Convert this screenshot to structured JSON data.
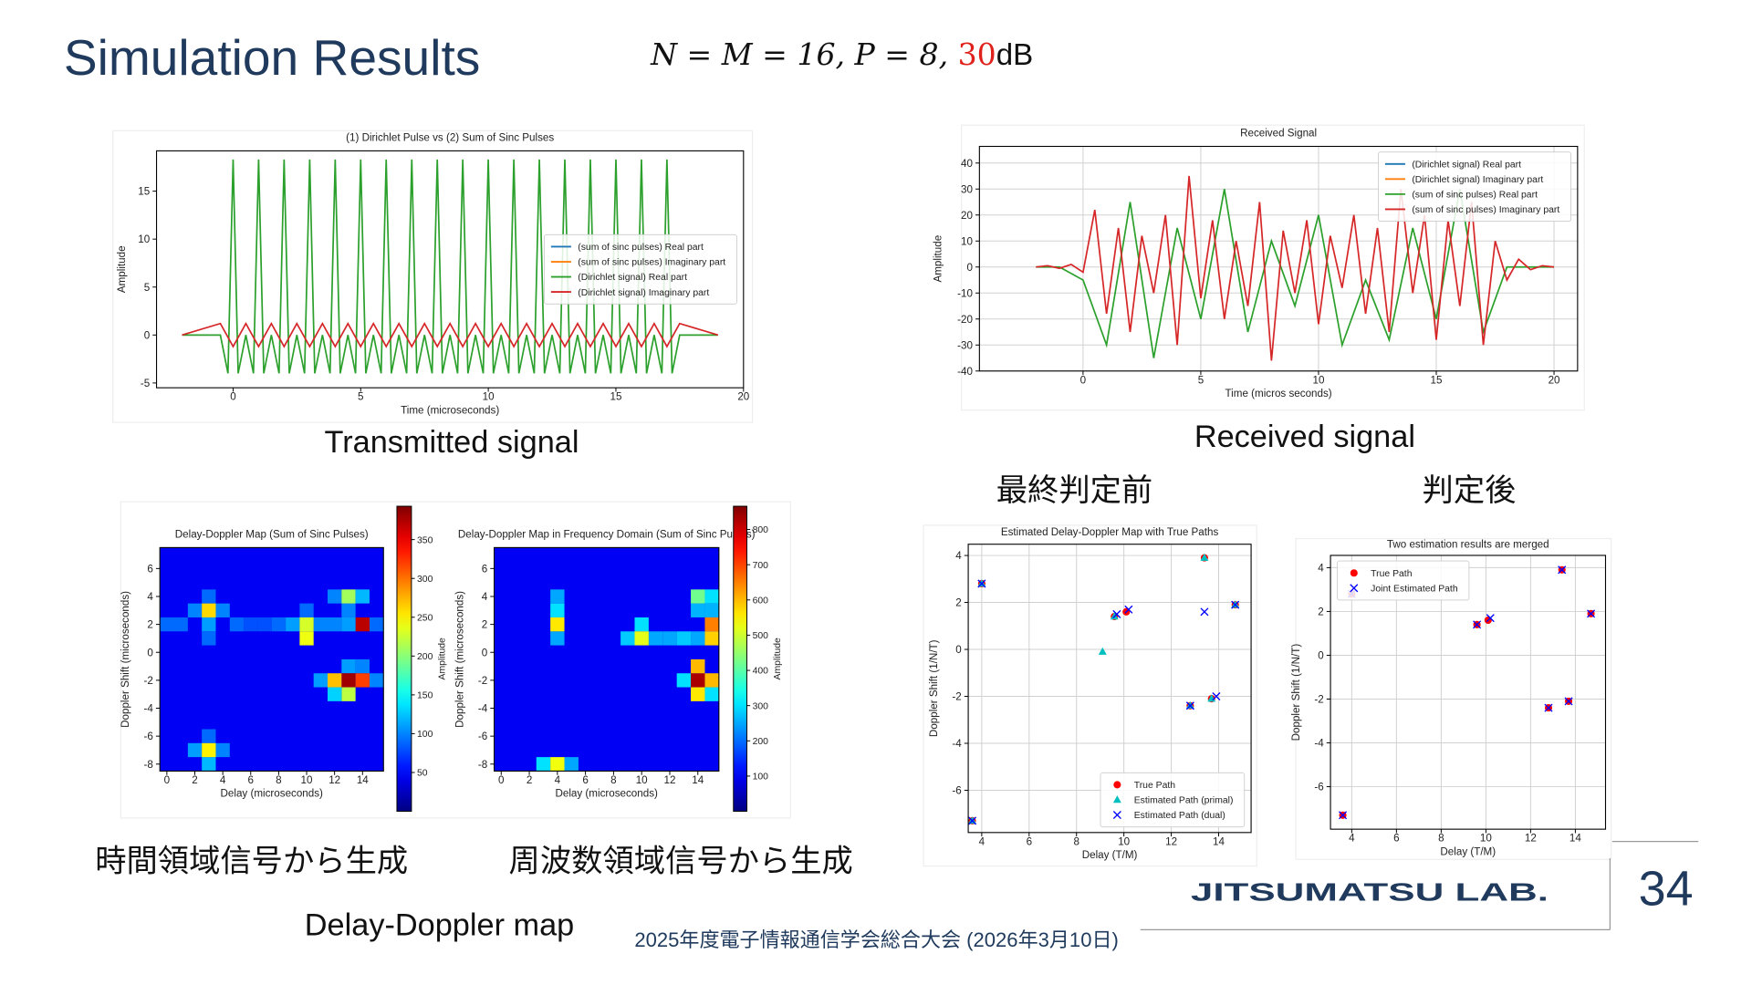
{
  "title": "Simulation Results",
  "formula": {
    "expression": "N = M = 16, P = 8, ",
    "snr": "30",
    "unit": "dB"
  },
  "captions": {
    "transmitted": "Transmitted signal",
    "received": "Received signal",
    "before": "最終判定前",
    "after": "判定後",
    "time_domain": "時間領域信号から生成",
    "freq_domain": "周波数領域信号から生成",
    "dd_map": "Delay-Doppler map"
  },
  "footer": "2025年度電子情報通信学会総合大会 (2026年3月10日)",
  "lab": "JITSUMATSU LAB.",
  "page_number": "34",
  "chart_data": [
    {
      "type": "line",
      "title": "(1) Dirichlet Pulse vs (2) Sum of Sinc Pulses",
      "xlabel": "Time (microseconds)",
      "ylabel": "Amplitude",
      "xlim": [
        -3,
        20
      ],
      "ylim": [
        -5.5,
        19.2
      ],
      "xticks": [
        0,
        5,
        10,
        15,
        20
      ],
      "yticks": [
        -5,
        0,
        5,
        10,
        15
      ],
      "grid": false,
      "legend": "center right",
      "series": [
        {
          "name": "(sum of sinc pulses) Real part",
          "color": "#1f77b4"
        },
        {
          "name": "(sum of sinc pulses) Imaginary part",
          "color": "#ff7f0e"
        },
        {
          "name": "(Dirichlet signal) Real part",
          "color": "#2ca02c",
          "x": [
            -2,
            -0.5,
            -0.2,
            0,
            0.2,
            0.5,
            0.8,
            1,
            1.2,
            1.5,
            1.8,
            2,
            2.2,
            2.5,
            2.8,
            3,
            3.2,
            3.5,
            3.8,
            4,
            4.2,
            4.5,
            4.8,
            5,
            5.2,
            5.5,
            5.8,
            6,
            6.2,
            6.5,
            6.8,
            7,
            7.2,
            7.5,
            7.8,
            8,
            8.2,
            8.5,
            8.8,
            9,
            9.2,
            9.5,
            9.8,
            10,
            10.2,
            10.5,
            10.8,
            11,
            11.2,
            11.5,
            11.8,
            12,
            12.2,
            12.5,
            12.8,
            13,
            13.2,
            13.5,
            13.8,
            14,
            14.2,
            14.5,
            14.8,
            15,
            15.2,
            15.5,
            15.8,
            16,
            16.2,
            16.5,
            16.8,
            17,
            17.2,
            17.5,
            19
          ],
          "values": [
            0,
            0,
            -4,
            18.3,
            -4,
            0,
            -4,
            18.3,
            -4,
            0,
            -4,
            18.3,
            -4,
            0,
            -4,
            18.3,
            -4,
            0,
            -4,
            18.3,
            -4,
            0,
            -4,
            18.3,
            -4,
            0,
            -4,
            18.3,
            -4,
            0,
            -4,
            18.3,
            -4,
            0,
            -4,
            18.3,
            -4,
            0,
            -4,
            18.3,
            -4,
            0,
            -4,
            18.3,
            -4,
            0,
            -4,
            18.3,
            -4,
            0,
            -4,
            18.3,
            -4,
            0,
            -4,
            18.3,
            -4,
            0,
            -4,
            18.3,
            -4,
            0,
            -4,
            18.3,
            -4,
            0,
            -4,
            18.3,
            -4,
            0,
            -4,
            18.3,
            -4,
            0,
            0
          ]
        },
        {
          "name": "(Dirichlet signal) Imaginary part",
          "color": "#d62728",
          "x": [
            -2,
            -0.5,
            0,
            0.5,
            1,
            1.5,
            2,
            2.5,
            3,
            3.5,
            4,
            4.5,
            5,
            5.5,
            6,
            6.5,
            7,
            7.5,
            8,
            8.5,
            9,
            9.5,
            10,
            10.5,
            11,
            11.5,
            12,
            12.5,
            13,
            13.5,
            14,
            14.5,
            15,
            15.5,
            16,
            16.5,
            17,
            17.5,
            19
          ],
          "values": [
            0,
            1.2,
            -1.2,
            1.2,
            -1.2,
            1.2,
            -1.2,
            1.2,
            -1.2,
            1.2,
            -1.2,
            1.2,
            -1.2,
            1.2,
            -1.2,
            1.2,
            -1.2,
            1.2,
            -1.2,
            1.2,
            -1.2,
            1.2,
            -1.2,
            1.2,
            -1.2,
            1.2,
            -1.2,
            1.2,
            -1.2,
            1.2,
            -1.2,
            1.2,
            -1.2,
            1.2,
            -1.2,
            1.2,
            -1.2,
            1.2,
            0
          ]
        }
      ]
    },
    {
      "type": "line",
      "title": "Received Signal",
      "xlabel": "Time (micros seconds)",
      "ylabel": "Amplitude",
      "xlim": [
        -4.4,
        21
      ],
      "ylim": [
        -40,
        46.4
      ],
      "xticks": [
        0,
        5,
        10,
        15,
        20
      ],
      "yticks": [
        -40,
        -30,
        -20,
        -10,
        0,
        10,
        20,
        30,
        40
      ],
      "grid": true,
      "legend": "upper right",
      "series": [
        {
          "name": "(Dirichlet signal) Real part",
          "color": "#1f77b4"
        },
        {
          "name": "(Dirichlet signal) Imaginary part",
          "color": "#ff7f0e"
        },
        {
          "name": "(sum of sinc pulses) Real part",
          "color": "#2ca02c",
          "x": [
            -2,
            -1,
            0,
            1,
            2,
            3,
            4,
            5,
            6,
            7,
            8,
            9,
            10,
            11,
            12,
            13,
            14,
            15,
            16,
            17,
            18,
            19,
            20
          ],
          "values": [
            0,
            0,
            -5,
            -30,
            25,
            -35,
            15,
            -20,
            30,
            -25,
            10,
            -15,
            20,
            -30,
            -5,
            -28,
            15,
            -20,
            30,
            -25,
            0,
            0,
            0
          ]
        },
        {
          "name": "(sum of sinc pulses) Imaginary part",
          "color": "#d62728",
          "x": [
            -2,
            -1.5,
            -1,
            -0.5,
            0,
            0.5,
            1,
            1.5,
            2,
            2.5,
            3,
            3.5,
            4,
            4.5,
            5,
            5.5,
            6,
            6.5,
            7,
            7.5,
            8,
            8.5,
            9,
            9.5,
            10,
            10.5,
            11,
            11.5,
            12,
            12.5,
            13,
            13.5,
            14,
            14.5,
            15,
            15.5,
            16,
            16.5,
            17,
            17.5,
            18,
            18.5,
            19,
            19.5,
            20
          ],
          "values": [
            0,
            0.5,
            -0.5,
            1,
            -2,
            22,
            -18,
            15,
            -25,
            12,
            -10,
            20,
            -30,
            35,
            -12,
            18,
            -20,
            10,
            -15,
            25,
            -36,
            14,
            -10,
            18,
            -22,
            12,
            -8,
            20,
            -18,
            15,
            -25,
            30,
            -10,
            20,
            -28,
            18,
            -15,
            25,
            -30,
            10,
            -5,
            3,
            -1,
            0.5,
            0
          ]
        }
      ]
    },
    {
      "type": "heatmap",
      "title": "Delay-Doppler Map (Sum of Sinc Pulses)",
      "xlabel": "Delay (microseconds)",
      "ylabel": "Doppler Shift (microseconds)",
      "colorbar_label": "Amplitude",
      "xlim": [
        -0.5,
        15.5
      ],
      "ylim": [
        -8.5,
        7.5
      ],
      "xticks": [
        0,
        2,
        4,
        6,
        8,
        10,
        12,
        14
      ],
      "yticks": [
        -8,
        -6,
        -4,
        -2,
        0,
        2,
        4,
        6
      ],
      "clim": [
        0,
        393
      ],
      "cticks": [
        50,
        100,
        150,
        200,
        250,
        300,
        350
      ],
      "fill_value": 45,
      "cells": [
        {
          "x": 3,
          "y": 2,
          "value": 110
        },
        {
          "x": 2,
          "y": 3,
          "value": 100
        },
        {
          "x": 4,
          "y": 3,
          "value": 100
        },
        {
          "x": 3,
          "y": 4,
          "value": 90
        },
        {
          "x": 3,
          "y": 1,
          "value": 90
        },
        {
          "x": 3,
          "y": -8,
          "value": 120
        },
        {
          "x": 2,
          "y": -7,
          "value": 110
        },
        {
          "x": 4,
          "y": -7,
          "value": 100
        },
        {
          "x": 3,
          "y": -6,
          "value": 90
        },
        {
          "x": 9,
          "y": 2,
          "value": 110
        },
        {
          "x": 11,
          "y": 2,
          "value": 100
        },
        {
          "x": 10,
          "y": 3,
          "value": 90
        },
        {
          "x": 0,
          "y": 2,
          "value": 90
        },
        {
          "x": 1,
          "y": 2,
          "value": 90
        },
        {
          "x": 5,
          "y": 2,
          "value": 90
        },
        {
          "x": 6,
          "y": 2,
          "value": 80
        },
        {
          "x": 7,
          "y": 2,
          "value": 80
        },
        {
          "x": 8,
          "y": 2,
          "value": 90
        },
        {
          "x": 12,
          "y": 2,
          "value": 100
        },
        {
          "x": 15,
          "y": 2,
          "value": 90
        },
        {
          "x": 13,
          "y": 3,
          "value": 100
        },
        {
          "x": 12,
          "y": 4,
          "value": 100
        },
        {
          "x": 13,
          "y": -1,
          "value": 110
        },
        {
          "x": 14,
          "y": -1,
          "value": 100
        },
        {
          "x": 11,
          "y": -2,
          "value": 110
        },
        {
          "x": 15,
          "y": -2,
          "value": 100
        },
        {
          "x": 3,
          "y": 3,
          "value": 260
        },
        {
          "x": 3,
          "y": -7,
          "value": 250
        },
        {
          "x": 10,
          "y": 2,
          "value": 230
        },
        {
          "x": 10,
          "y": 1,
          "value": 240
        },
        {
          "x": 13,
          "y": 4,
          "value": 210
        },
        {
          "x": 14,
          "y": 4,
          "value": 120
        },
        {
          "x": 14,
          "y": 2,
          "value": 370
        },
        {
          "x": 13,
          "y": 2,
          "value": 110
        },
        {
          "x": 13,
          "y": -2,
          "value": 380
        },
        {
          "x": 14,
          "y": -2,
          "value": 320
        },
        {
          "x": 12,
          "y": -2,
          "value": 270
        },
        {
          "x": 13,
          "y": -3,
          "value": 220
        },
        {
          "x": 12,
          "y": -3,
          "value": 130
        }
      ]
    },
    {
      "type": "heatmap",
      "title": "Delay-Doppler Map in Frequency Domain (Sum of Sinc Pulses)",
      "xlabel": "Delay (microseconds)",
      "ylabel": "Doppler Shift (microseconds)",
      "colorbar_label": "Amplitude",
      "xlim": [
        -0.5,
        15.5
      ],
      "ylim": [
        -8.5,
        7.5
      ],
      "xticks": [
        0,
        2,
        4,
        6,
        8,
        10,
        12,
        14
      ],
      "yticks": [
        -8,
        -6,
        -4,
        -2,
        0,
        2,
        4,
        6
      ],
      "clim": [
        0,
        866
      ],
      "cticks": [
        100,
        200,
        300,
        400,
        500,
        600,
        700,
        800
      ],
      "fill_value": 100,
      "cells": [
        {
          "x": 4,
          "y": 3,
          "value": 300
        },
        {
          "x": 3,
          "y": -8,
          "value": 300
        },
        {
          "x": 5,
          "y": -8,
          "value": 250
        },
        {
          "x": 10,
          "y": 2,
          "value": 300
        },
        {
          "x": 9,
          "y": 1,
          "value": 280
        },
        {
          "x": 15,
          "y": 4,
          "value": 300
        },
        {
          "x": 14,
          "y": 1,
          "value": 250
        },
        {
          "x": 15,
          "y": -3,
          "value": 300
        },
        {
          "x": 13,
          "y": -2,
          "value": 300
        },
        {
          "x": 4,
          "y": 1,
          "value": 250
        },
        {
          "x": 4,
          "y": 4,
          "value": 250
        },
        {
          "x": 14,
          "y": 3,
          "value": 260
        },
        {
          "x": 15,
          "y": 3,
          "value": 260
        },
        {
          "x": 11,
          "y": 1,
          "value": 250
        },
        {
          "x": 12,
          "y": 1,
          "value": 250
        },
        {
          "x": 13,
          "y": 1,
          "value": 280
        },
        {
          "x": 4,
          "y": 2,
          "value": 560
        },
        {
          "x": 4,
          "y": -8,
          "value": 530
        },
        {
          "x": 10,
          "y": 1,
          "value": 520
        },
        {
          "x": 14,
          "y": 4,
          "value": 420
        },
        {
          "x": 15,
          "y": 2,
          "value": 650
        },
        {
          "x": 15,
          "y": 1,
          "value": 580
        },
        {
          "x": 14,
          "y": -2,
          "value": 830
        },
        {
          "x": 14,
          "y": -1,
          "value": 600
        },
        {
          "x": 15,
          "y": -2,
          "value": 600
        },
        {
          "x": 14,
          "y": -3,
          "value": 560
        }
      ]
    },
    {
      "type": "scatter",
      "title": "Estimated Delay-Doppler Map with True Paths",
      "xlabel": "Delay (T/M)",
      "ylabel": "Doppler Shift (1/N/T)",
      "xlim": [
        3.43,
        15.37
      ],
      "ylim": [
        -7.8,
        4.48
      ],
      "xticks": [
        4,
        6,
        8,
        10,
        12,
        14
      ],
      "yticks": [
        -6,
        -4,
        -2,
        0,
        2,
        4
      ],
      "grid": true,
      "legend": "lower right",
      "series": [
        {
          "name": "True Path",
          "color": "#ff0000",
          "marker": "o",
          "x": [
            3.6,
            4.0,
            9.6,
            10.1,
            12.8,
            13.4,
            13.7,
            14.7
          ],
          "values": [
            -7.3,
            2.8,
            1.4,
            1.6,
            -2.4,
            3.9,
            -2.1,
            1.9
          ]
        },
        {
          "name": "Estimated Path (primal)",
          "color": "#00bfbf",
          "marker": "^",
          "x": [
            3.6,
            4.0,
            9.1,
            9.6,
            12.8,
            13.4,
            13.7,
            14.7
          ],
          "values": [
            -7.3,
            2.8,
            -0.1,
            1.4,
            -2.4,
            3.9,
            -2.1,
            1.9
          ]
        },
        {
          "name": "Estimated Path (dual)",
          "color": "#0000ff",
          "marker": "x",
          "x": [
            3.6,
            4.0,
            9.7,
            10.2,
            12.8,
            13.4,
            13.9,
            14.7
          ],
          "values": [
            -7.3,
            2.8,
            1.5,
            1.7,
            -2.4,
            1.6,
            -2.0,
            1.9
          ]
        }
      ]
    },
    {
      "type": "scatter",
      "title": "Two estimation results are merged",
      "xlabel": "Delay (T/M)",
      "ylabel": "Doppler Shift (1/N/T)",
      "xlim": [
        3.05,
        15.35
      ],
      "ylim": [
        -7.94,
        4.56
      ],
      "xticks": [
        4,
        6,
        8,
        10,
        12,
        14
      ],
      "yticks": [
        -6,
        -4,
        -2,
        0,
        2,
        4
      ],
      "grid": true,
      "legend": "upper left",
      "series": [
        {
          "name": "True Path",
          "color": "#ff0000",
          "marker": "o",
          "x": [
            3.6,
            4.0,
            9.6,
            10.1,
            12.8,
            13.4,
            13.7,
            14.7
          ],
          "values": [
            -7.3,
            2.8,
            1.4,
            1.6,
            -2.4,
            3.9,
            -2.1,
            1.9
          ]
        },
        {
          "name": "Joint Estimated Path",
          "color": "#0000ff",
          "marker": "x",
          "x": [
            3.6,
            4.0,
            9.6,
            10.2,
            12.8,
            13.4,
            13.7,
            14.7
          ],
          "values": [
            -7.3,
            2.8,
            1.4,
            1.7,
            -2.4,
            3.9,
            -2.1,
            1.9
          ]
        }
      ]
    }
  ]
}
